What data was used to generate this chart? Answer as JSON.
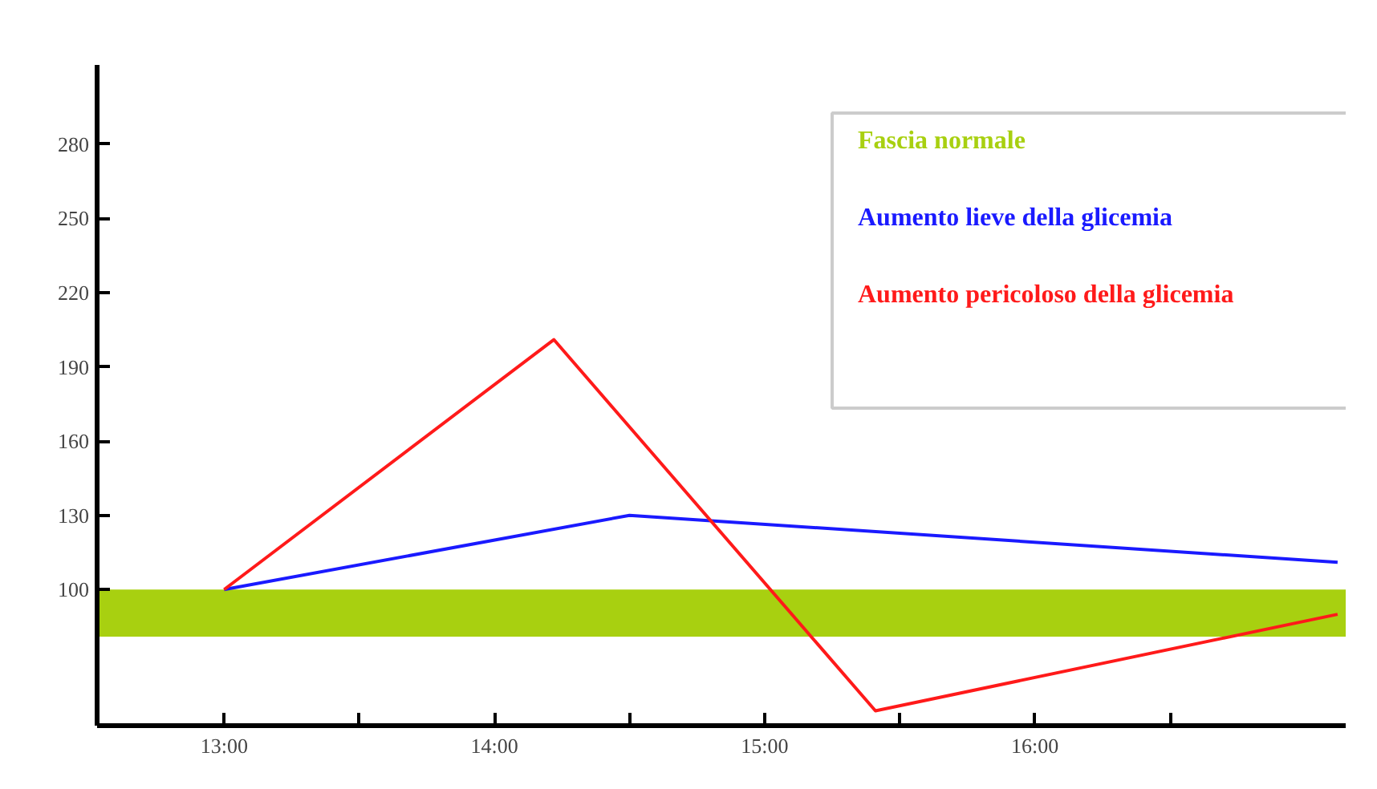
{
  "chart_data": {
    "type": "line",
    "series": [
      {
        "name": "Aumento lieve della glicemia",
        "color": "#1a1aff",
        "x": [
          13,
          14.5,
          17.12
        ],
        "values": [
          100,
          130,
          111
        ]
      },
      {
        "name": "Aumento pericoloso della glicemia",
        "color": "#ff1a1a",
        "x": [
          13,
          14.22,
          15.41,
          17.12
        ],
        "values": [
          100,
          201,
          51,
          90
        ]
      }
    ],
    "bands": [
      {
        "axis": "y",
        "from": 81,
        "to": 100,
        "label": "Fascia normale",
        "color": "#a8d010"
      }
    ],
    "xlim": [
      12.53,
      17.15
    ],
    "ylim": [
      45,
      312
    ],
    "xticks": [
      {
        "value": 13,
        "label": "13:00"
      },
      {
        "value": 13.5,
        "label": null
      },
      {
        "value": 14,
        "label": "14:00"
      },
      {
        "value": 14.5,
        "label": null
      },
      {
        "value": 15,
        "label": "15:00"
      },
      {
        "value": 15.5,
        "label": null
      },
      {
        "value": 16,
        "label": "16:00"
      },
      {
        "value": 16.5,
        "label": null
      }
    ],
    "yticks": [
      100,
      130,
      160,
      190,
      220,
      250,
      280
    ],
    "grid": false,
    "legend": "top right",
    "marker": "none",
    "line_style": "solid"
  }
}
